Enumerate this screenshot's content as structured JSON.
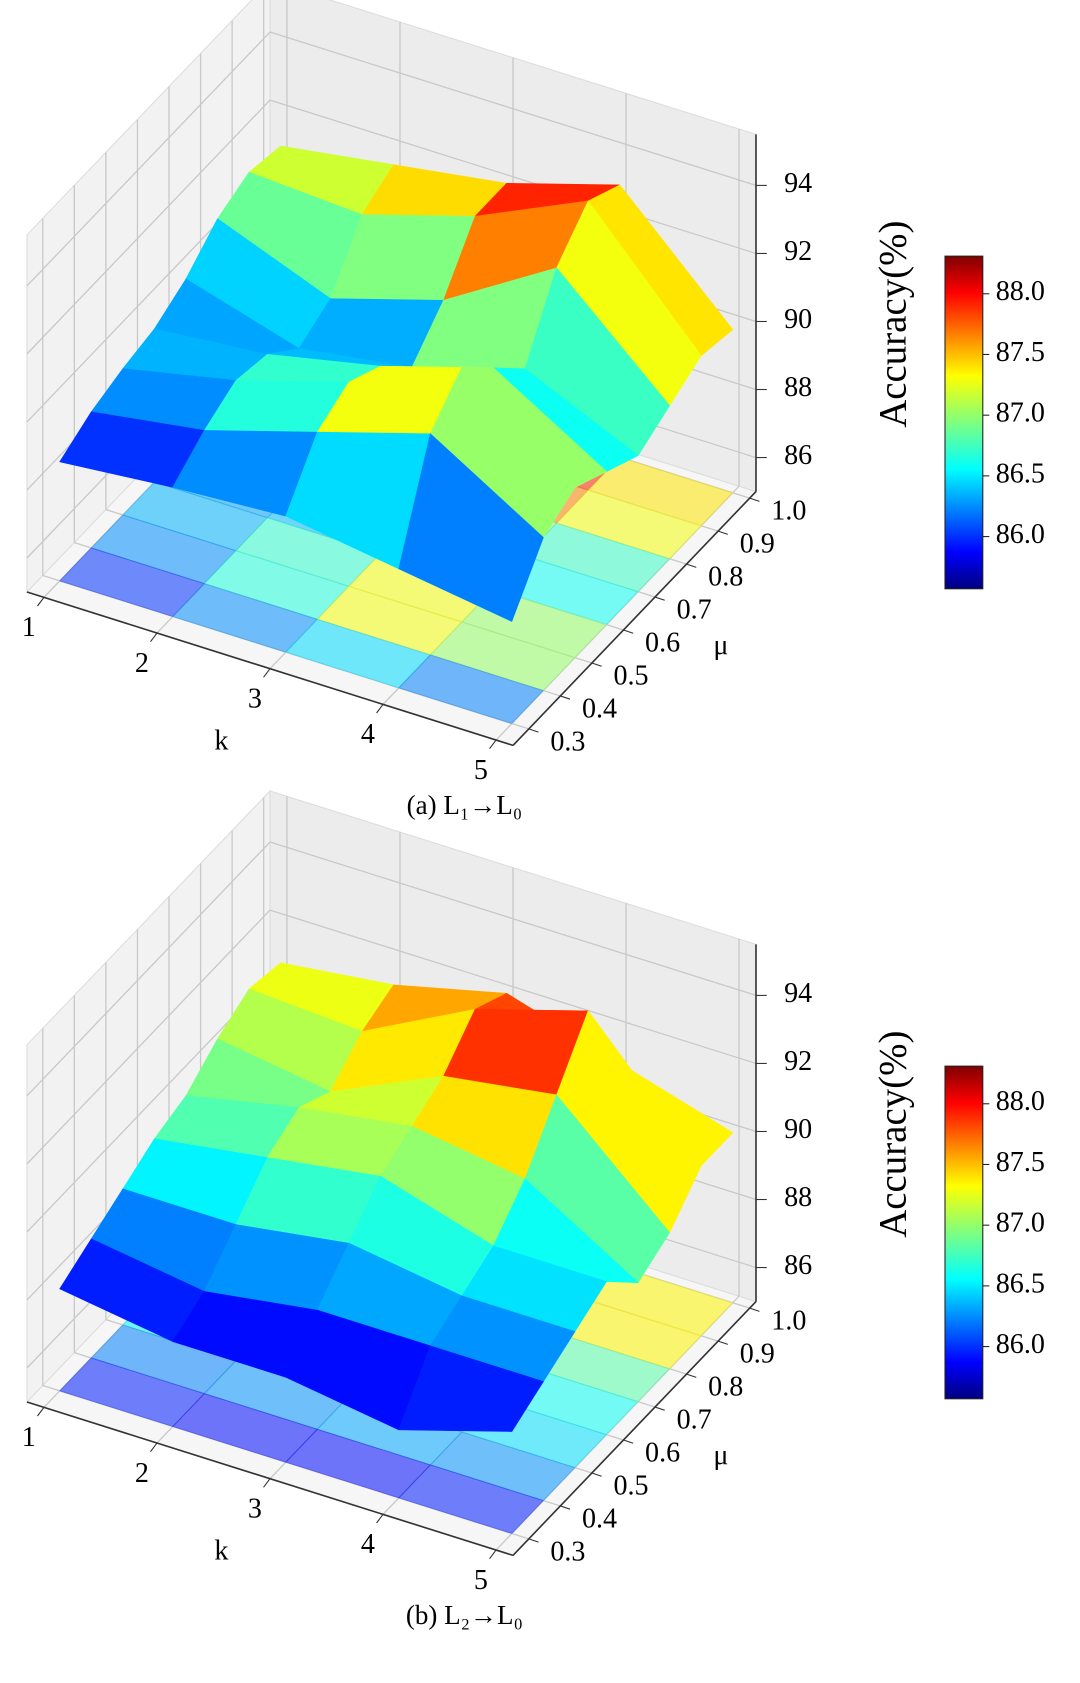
{
  "chart_data": [
    {
      "type": "surface3d",
      "caption": "(a) L₁→L₀",
      "xlabel": "k",
      "ylabel": "μ",
      "colorbar_label": "Accuracy(%)",
      "x": [
        1,
        2,
        3,
        4,
        5
      ],
      "y": [
        0.3,
        0.4,
        0.5,
        0.6,
        0.7,
        0.8,
        0.9,
        1.0
      ],
      "values": [
        [
          88.5,
          89.0,
          89.3,
          89.5,
          90.0,
          90.8,
          91.2,
          91.0
        ],
        [
          88.8,
          89.5,
          90.0,
          89.8,
          89.0,
          89.5,
          91.0,
          91.5
        ],
        [
          89.0,
          90.5,
          91.0,
          90.5,
          89.5,
          90.5,
          92.0,
          92.0
        ],
        [
          88.5,
          91.5,
          92.5,
          91.5,
          90.5,
          92.5,
          93.5,
          93.0
        ],
        [
          88.0,
          89.5,
          90.0,
          89.5,
          89.0,
          89.5,
          90.0,
          89.8
        ]
      ],
      "xlim": [
        0.85,
        5.15
      ],
      "ylim": [
        0.25,
        1.02
      ],
      "zlim": [
        85,
        95.5
      ],
      "xticks": [
        1,
        2,
        3,
        4,
        5
      ],
      "yticks": [
        0.3,
        0.4,
        0.5,
        0.6,
        0.7,
        0.8,
        0.9,
        {
          "value": 1,
          "label": "1.0"
        }
      ],
      "zticks": [
        86,
        88,
        90,
        92,
        94
      ],
      "colormap": "jet",
      "clim": [
        85.57,
        88.31
      ],
      "cticks": [
        {
          "value": 86,
          "label": "86.0"
        },
        86.5,
        {
          "value": 87,
          "label": "87.0"
        },
        87.5,
        {
          "value": 88,
          "label": "88.0"
        }
      ]
    },
    {
      "type": "surface3d",
      "caption": "(b) L₂→L₀",
      "xlabel": "k",
      "ylabel": "μ",
      "colorbar_label": "Accuracy(%)",
      "x": [
        1,
        2,
        3,
        4,
        5
      ],
      "y": [
        0.3,
        0.4,
        0.5,
        0.6,
        0.7,
        0.8,
        0.9,
        1.0
      ],
      "values": [
        [
          88.0,
          88.5,
          89.0,
          89.5,
          89.8,
          90.5,
          91.0,
          90.8
        ],
        [
          87.5,
          88.0,
          89.0,
          90.0,
          90.5,
          90.0,
          90.8,
          91.2
        ],
        [
          87.5,
          88.5,
          89.5,
          90.5,
          91.0,
          91.5,
          92.5,
          92.0
        ],
        [
          87.0,
          88.5,
          89.0,
          89.5,
          90.5,
          92.0,
          93.5,
          91.0
        ],
        [
          88.0,
          88.5,
          89.0,
          89.5,
          88.5,
          89.0,
          90.0,
          90.0
        ]
      ],
      "xlim": [
        0.85,
        5.15
      ],
      "ylim": [
        0.25,
        1.02
      ],
      "zlim": [
        85,
        95.5
      ],
      "xticks": [
        1,
        2,
        3,
        4,
        5
      ],
      "yticks": [
        0.3,
        0.4,
        0.5,
        0.6,
        0.7,
        0.8,
        0.9,
        {
          "value": 1,
          "label": "1.0"
        }
      ],
      "zticks": [
        86,
        88,
        90,
        92,
        94
      ],
      "colormap": "jet",
      "clim": [
        85.57,
        88.31
      ],
      "cticks": [
        {
          "value": 86,
          "label": "86.0"
        },
        86.5,
        {
          "value": 87,
          "label": "87.0"
        },
        87.5,
        {
          "value": 88,
          "label": "88.0"
        }
      ]
    }
  ]
}
